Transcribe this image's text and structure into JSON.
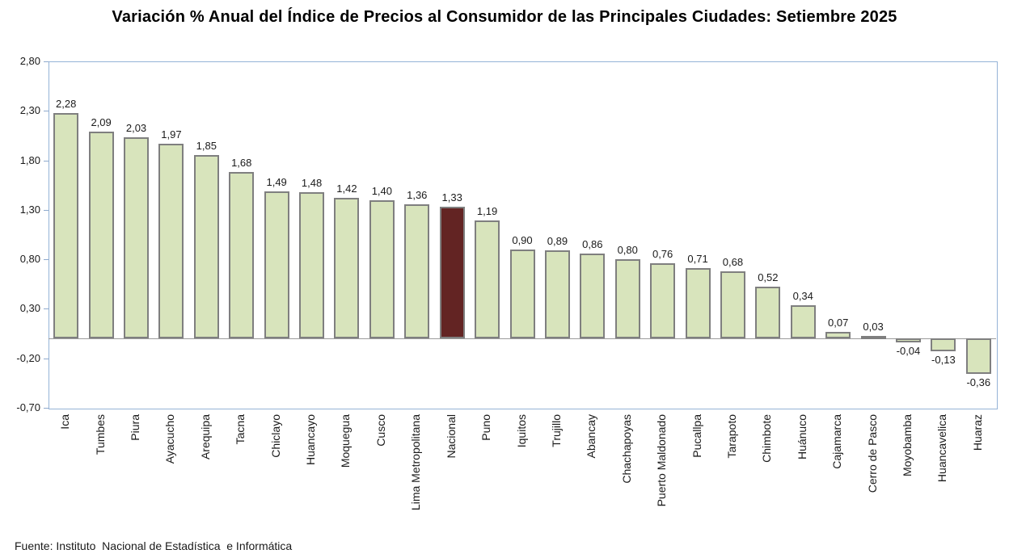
{
  "footer": {
    "source": "Fuente: Instituto  Nacional de Estadística  e Informática"
  },
  "chart_data": {
    "type": "bar",
    "title": "Variación % Anual del Índice de Precios al Consumidor de las Principales Ciudades: Setiembre 2025",
    "categories": [
      "Ica",
      "Tumbes",
      "Piura",
      "Ayacucho",
      "Arequipa",
      "Tacna",
      "Chiclayo",
      "Huancayo",
      "Moquegua",
      "Cusco",
      "Lima Metropolitana",
      "Nacional",
      "Puno",
      "Iquitos",
      "Trujillo",
      "Abancay",
      "Chachapoyas",
      "Puerto Maldonado",
      "Pucallpa",
      "Tarapoto",
      "Chimbote",
      "Huánuco",
      "Cajamarca",
      "Cerro de Pasco",
      "Moyobamba",
      "Huancavelica",
      "Huaraz"
    ],
    "values": [
      2.28,
      2.09,
      2.03,
      1.97,
      1.85,
      1.68,
      1.49,
      1.48,
      1.42,
      1.4,
      1.36,
      1.33,
      1.19,
      0.9,
      0.89,
      0.86,
      0.8,
      0.76,
      0.71,
      0.68,
      0.52,
      0.34,
      0.07,
      0.03,
      -0.04,
      -0.13,
      -0.36
    ],
    "value_labels": [
      "2,28",
      "2,09",
      "2,03",
      "1,97",
      "1,85",
      "1,68",
      "1,49",
      "1,48",
      "1,42",
      "1,40",
      "1,36",
      "1,33",
      "1,19",
      "0,90",
      "0,89",
      "0,86",
      "0,80",
      "0,76",
      "0,71",
      "0,68",
      "0,52",
      "0,34",
      "0,07",
      "0,03",
      "-0,04",
      "-0,13",
      "-0,36"
    ],
    "highlight_category": "Nacional",
    "ylim": [
      -0.7,
      2.8
    ],
    "ytick_labels": [
      "2,80",
      "2,30",
      "1,80",
      "1,30",
      "0,80",
      "0,30",
      "-0,20",
      "-0,70"
    ],
    "xlabel": "",
    "ylabel": "",
    "grid": "off",
    "legend": "none",
    "colors": {
      "bar_fill": "#d8e4bc",
      "bar_border": "#7f7f7f",
      "highlight_fill": "#632423",
      "plot_border": "#95b3d7",
      "zero_line": "#9b9b9b",
      "text": "#1a1a1a"
    }
  }
}
